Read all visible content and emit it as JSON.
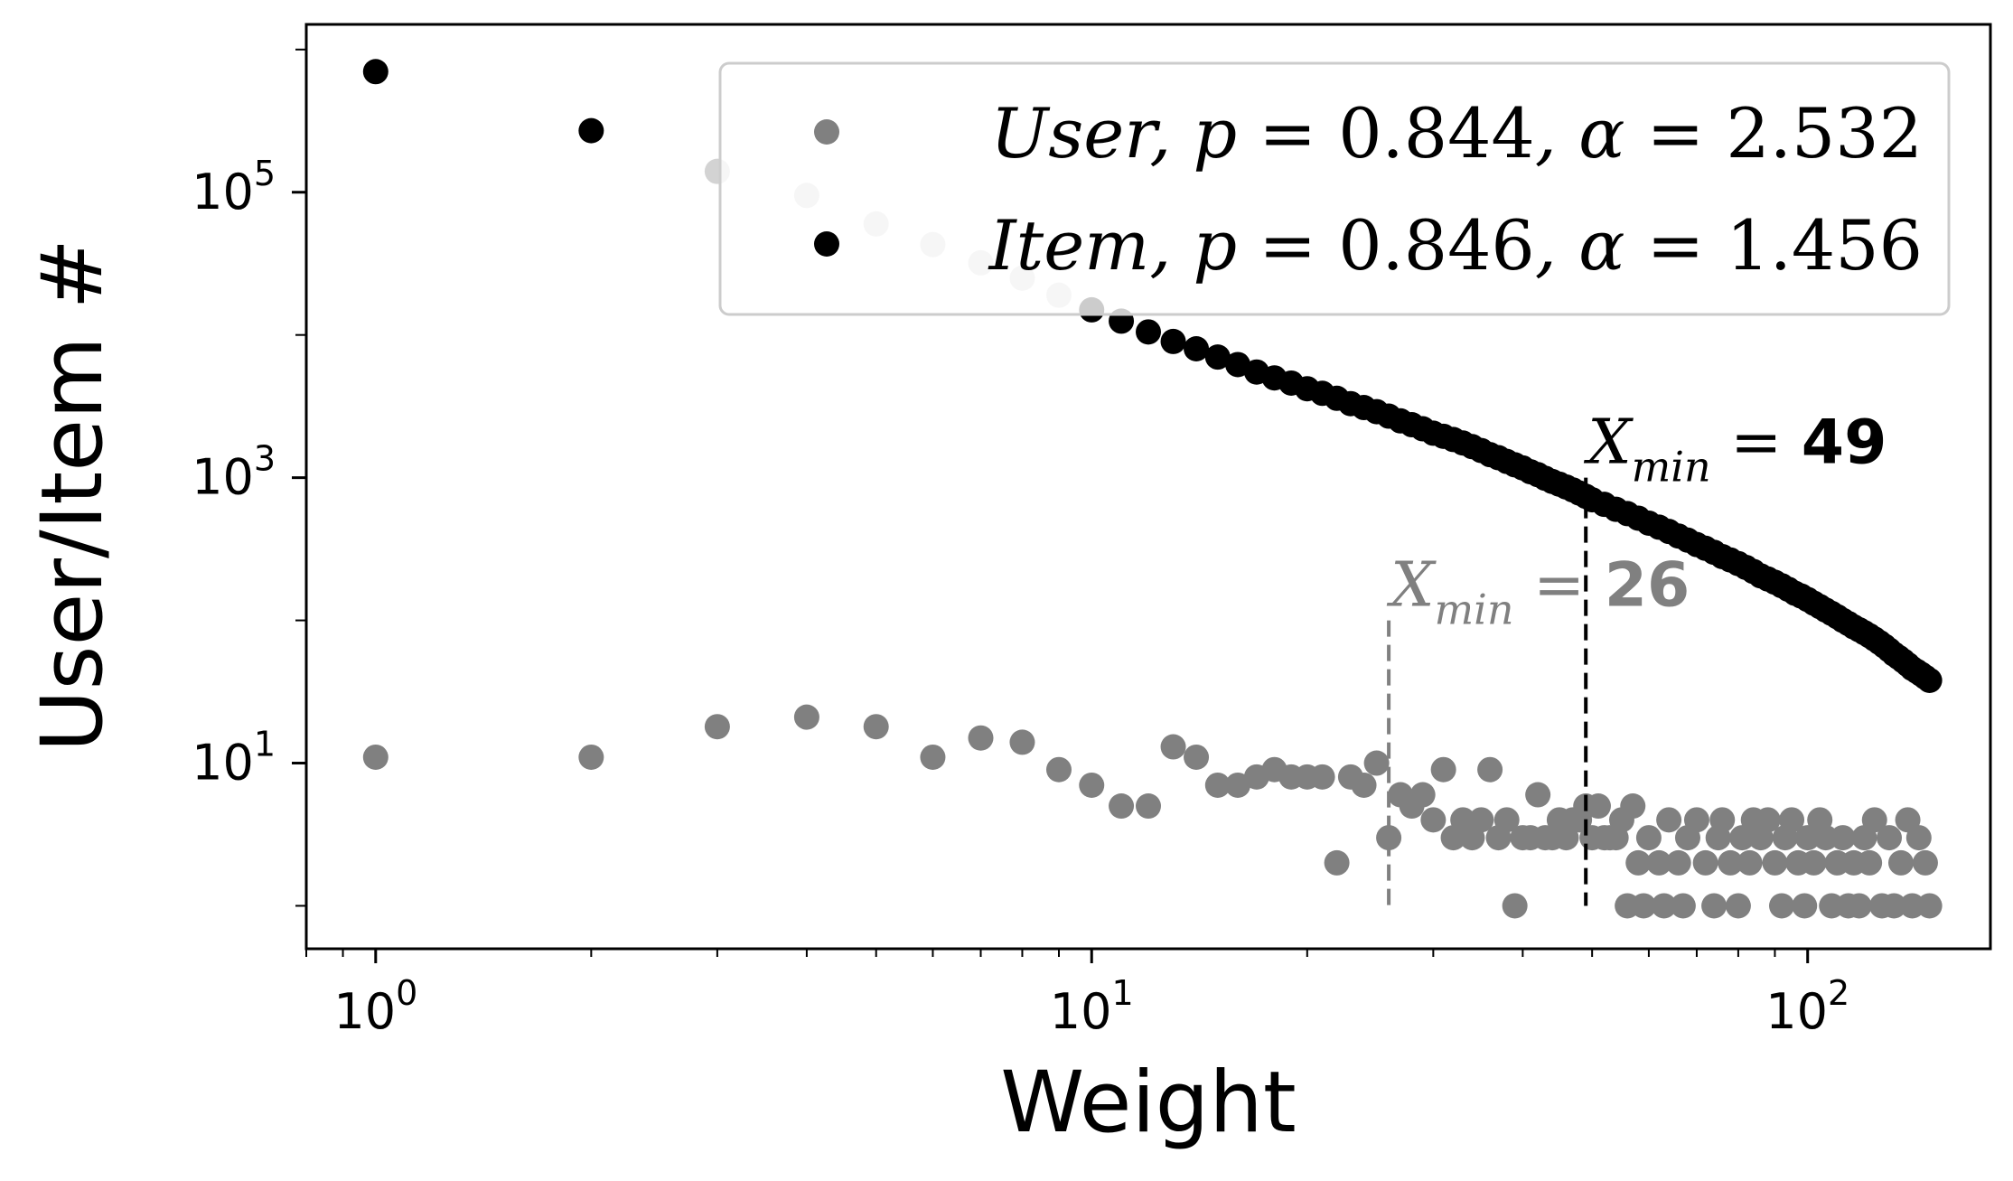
{
  "chart_data": {
    "type": "scatter",
    "xlabel": "Weight",
    "ylabel": "User/Item #",
    "x_scale": "log",
    "y_scale": "log",
    "xlim": [
      0.8,
      180
    ],
    "ylim": [
      0.5,
      1500000
    ],
    "x_ticks": [
      {
        "value": 1,
        "base": "10",
        "exp": "0"
      },
      {
        "value": 10,
        "base": "10",
        "exp": "1"
      },
      {
        "value": 100,
        "base": "10",
        "exp": "2"
      }
    ],
    "y_ticks": [
      {
        "value": 10,
        "base": "10",
        "exp": "1"
      },
      {
        "value": 1000,
        "base": "10",
        "exp": "3"
      },
      {
        "value": 100000,
        "base": "10",
        "exp": "5"
      }
    ],
    "grid": false,
    "legend_position": "top-right",
    "colors": {
      "user": "#808080",
      "item": "#000000",
      "item_high": "#d3d3d3"
    },
    "series": [
      {
        "key": "user",
        "name": "User",
        "p": "0.844",
        "alpha": "2.532",
        "points": [
          [
            1,
            11
          ],
          [
            2,
            11
          ],
          [
            3,
            18
          ],
          [
            4,
            21
          ],
          [
            5,
            18
          ],
          [
            6,
            11
          ],
          [
            7,
            15
          ],
          [
            8,
            14
          ],
          [
            9,
            9
          ],
          [
            10,
            7
          ],
          [
            11,
            5
          ],
          [
            12,
            5
          ],
          [
            13,
            13
          ],
          [
            14,
            11
          ],
          [
            15,
            7
          ],
          [
            16,
            7
          ],
          [
            17,
            8
          ],
          [
            18,
            9
          ],
          [
            19,
            8
          ],
          [
            20,
            8
          ],
          [
            21,
            8
          ],
          [
            22,
            2
          ],
          [
            23,
            8
          ],
          [
            24,
            7
          ],
          [
            25,
            10
          ],
          [
            26,
            3
          ],
          [
            27,
            6
          ],
          [
            28,
            5
          ],
          [
            29,
            6
          ],
          [
            30,
            4
          ],
          [
            31,
            9
          ],
          [
            32,
            3
          ],
          [
            33,
            4
          ],
          [
            34,
            3
          ],
          [
            35,
            4
          ],
          [
            36,
            9
          ],
          [
            37,
            3
          ],
          [
            38,
            4
          ],
          [
            39,
            1
          ],
          [
            40,
            3
          ],
          [
            41,
            3
          ],
          [
            42,
            6
          ],
          [
            43,
            3
          ],
          [
            44,
            3
          ],
          [
            45,
            4
          ],
          [
            46,
            3
          ],
          [
            47,
            4
          ],
          [
            48,
            4
          ],
          [
            49,
            5
          ],
          [
            50,
            3
          ],
          [
            51,
            5
          ],
          [
            52,
            3
          ],
          [
            53,
            3
          ],
          [
            54,
            3
          ],
          [
            55,
            4
          ],
          [
            56,
            1
          ],
          [
            57,
            5
          ],
          [
            58,
            2
          ],
          [
            59,
            1
          ],
          [
            60,
            3
          ],
          [
            62,
            2
          ],
          [
            63,
            1
          ],
          [
            64,
            4
          ],
          [
            66,
            2
          ],
          [
            67,
            1
          ],
          [
            68,
            3
          ],
          [
            70,
            4
          ],
          [
            72,
            2
          ],
          [
            74,
            1
          ],
          [
            75,
            3
          ],
          [
            76,
            4
          ],
          [
            78,
            2
          ],
          [
            80,
            1
          ],
          [
            81,
            3
          ],
          [
            83,
            2
          ],
          [
            84,
            4
          ],
          [
            86,
            3
          ],
          [
            88,
            4
          ],
          [
            90,
            2
          ],
          [
            92,
            1
          ],
          [
            93,
            3
          ],
          [
            95,
            4
          ],
          [
            97,
            2
          ],
          [
            99,
            1
          ],
          [
            100,
            3
          ],
          [
            102,
            2
          ],
          [
            104,
            4
          ],
          [
            106,
            3
          ],
          [
            108,
            1
          ],
          [
            110,
            2
          ],
          [
            112,
            3
          ],
          [
            114,
            1
          ],
          [
            116,
            2
          ],
          [
            118,
            1
          ],
          [
            120,
            3
          ],
          [
            122,
            2
          ],
          [
            124,
            4
          ],
          [
            127,
            1
          ],
          [
            130,
            3
          ],
          [
            132,
            1
          ],
          [
            135,
            2
          ],
          [
            138,
            4
          ],
          [
            140,
            1
          ],
          [
            143,
            3
          ],
          [
            146,
            2
          ],
          [
            148,
            1
          ]
        ]
      },
      {
        "key": "item",
        "name": "Item",
        "p": "0.846",
        "alpha": "1.456",
        "points": [
          [
            1,
            700000
          ],
          [
            2,
            270000
          ],
          [
            3,
            140000
          ],
          [
            4,
            95000
          ],
          [
            5,
            60000
          ],
          [
            6,
            43000
          ],
          [
            7,
            32000
          ],
          [
            8,
            25000
          ],
          [
            9,
            19000
          ],
          [
            10,
            15000
          ],
          [
            11,
            12500
          ],
          [
            12,
            10500
          ],
          [
            13,
            9000
          ],
          [
            14,
            8000
          ],
          [
            15,
            7000
          ],
          [
            16,
            6200
          ],
          [
            17,
            5500
          ],
          [
            18,
            5000
          ],
          [
            19,
            4600
          ],
          [
            20,
            4200
          ],
          [
            21,
            3900
          ],
          [
            22,
            3600
          ],
          [
            23,
            3300
          ],
          [
            24,
            3100
          ],
          [
            25,
            2900
          ],
          [
            26,
            2700
          ],
          [
            27,
            2500
          ],
          [
            28,
            2350
          ],
          [
            29,
            2200
          ],
          [
            30,
            2050
          ],
          [
            31,
            1950
          ],
          [
            32,
            1850
          ],
          [
            33,
            1750
          ],
          [
            34,
            1650
          ],
          [
            35,
            1550
          ],
          [
            36,
            1450
          ],
          [
            37,
            1380
          ],
          [
            38,
            1300
          ],
          [
            39,
            1230
          ],
          [
            40,
            1170
          ],
          [
            41,
            1100
          ],
          [
            42,
            1050
          ],
          [
            43,
            990
          ],
          [
            44,
            940
          ],
          [
            45,
            900
          ],
          [
            46,
            860
          ],
          [
            47,
            820
          ],
          [
            48,
            780
          ],
          [
            49,
            740
          ],
          [
            50,
            700
          ],
          [
            52,
            650
          ],
          [
            54,
            600
          ],
          [
            56,
            560
          ],
          [
            58,
            520
          ],
          [
            60,
            480
          ],
          [
            62,
            450
          ],
          [
            64,
            420
          ],
          [
            66,
            390
          ],
          [
            68,
            365
          ],
          [
            70,
            340
          ],
          [
            72,
            320
          ],
          [
            74,
            300
          ],
          [
            76,
            280
          ],
          [
            78,
            265
          ],
          [
            80,
            250
          ],
          [
            82,
            235
          ],
          [
            84,
            220
          ],
          [
            86,
            205
          ],
          [
            88,
            195
          ],
          [
            90,
            185
          ],
          [
            92,
            175
          ],
          [
            94,
            165
          ],
          [
            96,
            155
          ],
          [
            98,
            148
          ],
          [
            100,
            140
          ],
          [
            102,
            132
          ],
          [
            104,
            125
          ],
          [
            106,
            118
          ],
          [
            108,
            112
          ],
          [
            110,
            106
          ],
          [
            112,
            100
          ],
          [
            114,
            95
          ],
          [
            116,
            90
          ],
          [
            118,
            86
          ],
          [
            120,
            82
          ],
          [
            122,
            78
          ],
          [
            124,
            74
          ],
          [
            126,
            70
          ],
          [
            128,
            66
          ],
          [
            130,
            62
          ],
          [
            132,
            58
          ],
          [
            134,
            55
          ],
          [
            136,
            52
          ],
          [
            138,
            49
          ],
          [
            140,
            46
          ],
          [
            142,
            44
          ],
          [
            144,
            42
          ],
          [
            146,
            40
          ],
          [
            148,
            38
          ]
        ]
      }
    ],
    "annotations": [
      {
        "key": "user_xmin",
        "x": 26,
        "y_top": 100,
        "label_var": "X",
        "label_sub": "min",
        "label_eq": " = ",
        "label_val": "26",
        "color": "#808080"
      },
      {
        "key": "item_xmin",
        "x": 49,
        "y_top": 1000,
        "label_var": "X",
        "label_sub": "min",
        "label_eq": " = ",
        "label_val": "49",
        "color": "#000000"
      }
    ]
  }
}
